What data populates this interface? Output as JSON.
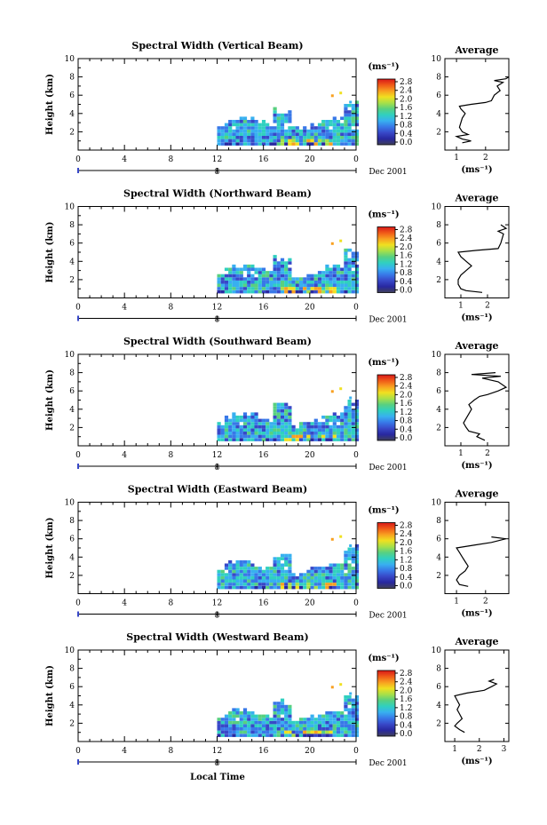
{
  "figure": {
    "xlabel": "Local Time",
    "date_label": "Dec 2001",
    "date_marker": "8",
    "ylabel": "Height (km)",
    "unit_label": "(ms⁻¹)",
    "avg_title": "Average",
    "avg_xlabel": "(ms⁻¹)"
  },
  "colorbar": {
    "ticks": [
      "2.8",
      "2.4",
      "2.0",
      "1.6",
      "1.2",
      "0.8",
      "0.4",
      "0.0"
    ],
    "colors": [
      "#d81818",
      "#f05a18",
      "#f8a020",
      "#f0e020",
      "#a8e048",
      "#58d080",
      "#30d0c0",
      "#38b0f0",
      "#3878e8",
      "#3848c8",
      "#2828a0",
      "#404058"
    ]
  },
  "chart_data": [
    {
      "type": "heatmap",
      "title": "Spectral Width (Vertical Beam)",
      "xlabel": "Local Time",
      "ylabel": "Height (km)",
      "xlim": [
        0,
        24
      ],
      "ylim": [
        0,
        10
      ],
      "xticks": [
        "0",
        "4",
        "8",
        "12",
        "16",
        "20",
        "0"
      ],
      "yticks": [
        "2",
        "4",
        "6",
        "8",
        "10"
      ],
      "data_start_hour": 12,
      "colorbar_label": "(ms⁻¹)",
      "colorbar_range": [
        0.0,
        2.8
      ],
      "profile": {
        "title": "Average",
        "xlabel": "(ms⁻¹)",
        "xticks": [
          "1",
          "2"
        ],
        "xlim": [
          0.6,
          2.8
        ],
        "ylim": [
          0,
          10
        ],
        "yticks": [
          "2",
          "4",
          "6",
          "8",
          "10"
        ],
        "points": [
          [
            1.2,
            0.8
          ],
          [
            1.5,
            1.0
          ],
          [
            1.2,
            1.2
          ],
          [
            1.0,
            1.5
          ],
          [
            1.4,
            1.7
          ],
          [
            1.2,
            2.0
          ],
          [
            1.1,
            2.5
          ],
          [
            1.15,
            3.0
          ],
          [
            1.2,
            3.5
          ],
          [
            1.3,
            4.0
          ],
          [
            1.15,
            4.5
          ],
          [
            1.1,
            4.8
          ],
          [
            1.5,
            5.0
          ],
          [
            2.0,
            5.2
          ],
          [
            2.2,
            5.4
          ],
          [
            2.3,
            6.0
          ],
          [
            2.5,
            6.5
          ],
          [
            2.4,
            7.0
          ],
          [
            2.6,
            7.4
          ],
          [
            2.3,
            7.6
          ],
          [
            2.7,
            7.8
          ],
          [
            2.8,
            8.0
          ]
        ]
      }
    },
    {
      "type": "heatmap",
      "title": "Spectral Width (Northward Beam)",
      "xlabel": "Local Time",
      "ylabel": "Height (km)",
      "xlim": [
        0,
        24
      ],
      "ylim": [
        0,
        10
      ],
      "xticks": [
        "0",
        "4",
        "8",
        "12",
        "16",
        "20",
        "0"
      ],
      "yticks": [
        "2",
        "4",
        "6",
        "8",
        "10"
      ],
      "data_start_hour": 12,
      "colorbar_label": "(ms⁻¹)",
      "colorbar_range": [
        0.0,
        2.8
      ],
      "profile": {
        "title": "Average",
        "xlabel": "(ms⁻¹)",
        "xticks": [
          "1",
          "2"
        ],
        "xlim": [
          0.4,
          2.8
        ],
        "ylim": [
          0,
          10
        ],
        "yticks": [
          "2",
          "4",
          "6",
          "8",
          "10"
        ],
        "points": [
          [
            1.8,
            0.6
          ],
          [
            1.2,
            0.8
          ],
          [
            1.0,
            1.0
          ],
          [
            0.9,
            1.5
          ],
          [
            0.9,
            2.0
          ],
          [
            1.0,
            2.5
          ],
          [
            1.2,
            3.0
          ],
          [
            1.4,
            3.5
          ],
          [
            1.2,
            4.0
          ],
          [
            1.0,
            4.5
          ],
          [
            0.9,
            5.0
          ],
          [
            1.6,
            5.2
          ],
          [
            2.4,
            5.4
          ],
          [
            2.5,
            6.0
          ],
          [
            2.6,
            7.0
          ],
          [
            2.4,
            7.3
          ],
          [
            2.7,
            7.6
          ],
          [
            2.5,
            8.0
          ]
        ]
      }
    },
    {
      "type": "heatmap",
      "title": "Spectral Width (Southward Beam)",
      "xlabel": "Local Time",
      "ylabel": "Height (km)",
      "xlim": [
        0,
        24
      ],
      "ylim": [
        0,
        10
      ],
      "xticks": [
        "0",
        "4",
        "8",
        "12",
        "16",
        "20",
        "0"
      ],
      "yticks": [
        "2",
        "4",
        "6",
        "8",
        "10"
      ],
      "data_start_hour": 12,
      "colorbar_label": "(ms⁻¹)",
      "colorbar_range": [
        0.0,
        2.8
      ],
      "profile": {
        "title": "Average",
        "xlabel": "(ms⁻¹)",
        "xticks": [
          "1",
          "2"
        ],
        "xlim": [
          0.4,
          2.8
        ],
        "ylim": [
          0,
          10
        ],
        "yticks": [
          "2",
          "4",
          "6",
          "8",
          "10"
        ],
        "points": [
          [
            1.9,
            0.6
          ],
          [
            1.6,
            1.0
          ],
          [
            1.7,
            1.3
          ],
          [
            1.3,
            1.6
          ],
          [
            1.2,
            2.0
          ],
          [
            1.1,
            2.5
          ],
          [
            1.2,
            3.0
          ],
          [
            1.3,
            3.5
          ],
          [
            1.4,
            4.0
          ],
          [
            1.3,
            4.5
          ],
          [
            1.5,
            5.0
          ],
          [
            1.7,
            5.4
          ],
          [
            2.0,
            5.6
          ],
          [
            2.4,
            6.0
          ],
          [
            2.7,
            6.4
          ],
          [
            2.4,
            7.0
          ],
          [
            1.8,
            7.4
          ],
          [
            2.5,
            7.6
          ],
          [
            1.4,
            7.8
          ],
          [
            2.3,
            8.0
          ]
        ]
      }
    },
    {
      "type": "heatmap",
      "title": "Spectral Width (Eastward Beam)",
      "xlabel": "Local Time",
      "ylabel": "Height (km)",
      "xlim": [
        0,
        24
      ],
      "ylim": [
        0,
        10
      ],
      "xticks": [
        "0",
        "4",
        "8",
        "12",
        "16",
        "20",
        "0"
      ],
      "yticks": [
        "2",
        "4",
        "6",
        "8",
        "10"
      ],
      "data_start_hour": 12,
      "colorbar_label": "(ms⁻¹)",
      "colorbar_range": [
        0.0,
        2.8
      ],
      "profile": {
        "title": "Average",
        "xlabel": "(ms⁻¹)",
        "xticks": [
          "1",
          "2"
        ],
        "xlim": [
          0.6,
          2.8
        ],
        "ylim": [
          0,
          10
        ],
        "yticks": [
          "2",
          "4",
          "6",
          "8",
          "10"
        ],
        "points": [
          [
            1.4,
            0.8
          ],
          [
            1.1,
            1.0
          ],
          [
            1.0,
            1.5
          ],
          [
            1.1,
            2.0
          ],
          [
            1.3,
            2.5
          ],
          [
            1.4,
            3.0
          ],
          [
            1.3,
            3.5
          ],
          [
            1.2,
            4.0
          ],
          [
            1.1,
            4.5
          ],
          [
            1.0,
            5.0
          ],
          [
            1.6,
            5.3
          ],
          [
            2.2,
            5.6
          ],
          [
            2.7,
            6.0
          ],
          [
            2.2,
            6.2
          ]
        ]
      }
    },
    {
      "type": "heatmap",
      "title": "Spectral Width (Westward Beam)",
      "xlabel": "Local Time",
      "ylabel": "Height (km)",
      "xlim": [
        0,
        24
      ],
      "ylim": [
        0,
        10
      ],
      "xticks": [
        "0",
        "4",
        "8",
        "12",
        "16",
        "20",
        "0"
      ],
      "yticks": [
        "2",
        "4",
        "6",
        "8",
        "10"
      ],
      "data_start_hour": 12,
      "colorbar_label": "(ms⁻¹)",
      "colorbar_range": [
        0.0,
        2.8
      ],
      "profile": {
        "title": "Average",
        "xlabel": "(ms⁻¹)",
        "xticks": [
          "1",
          "2",
          "3"
        ],
        "xlim": [
          0.6,
          3.2
        ],
        "ylim": [
          0,
          10
        ],
        "yticks": [
          "2",
          "4",
          "6",
          "8",
          "10"
        ],
        "points": [
          [
            1.4,
            1.0
          ],
          [
            1.2,
            1.3
          ],
          [
            1.0,
            1.7
          ],
          [
            1.1,
            2.0
          ],
          [
            1.3,
            2.5
          ],
          [
            1.2,
            3.0
          ],
          [
            1.1,
            3.5
          ],
          [
            1.2,
            4.0
          ],
          [
            1.1,
            4.5
          ],
          [
            1.0,
            5.0
          ],
          [
            1.5,
            5.3
          ],
          [
            2.2,
            5.6
          ],
          [
            2.5,
            6.0
          ],
          [
            2.7,
            6.3
          ],
          [
            2.4,
            6.6
          ],
          [
            2.6,
            6.8
          ]
        ]
      }
    }
  ]
}
